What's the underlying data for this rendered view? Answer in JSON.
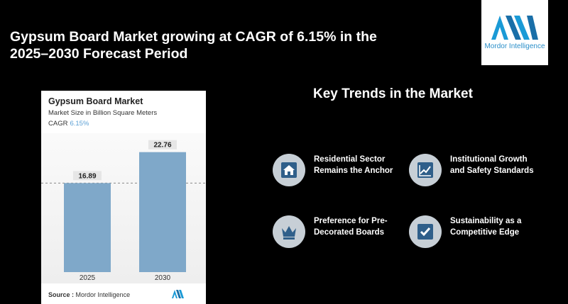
{
  "headline": "Gypsum Board Market growing at CAGR of 6.15% in the 2025–2030 Forecast Period",
  "logo": {
    "text": "Mordor Intelligence"
  },
  "card": {
    "title": "Gypsum Board Market",
    "subtitle": "Market Size in Billion Square Meters",
    "cagr_label": "CAGR",
    "cagr_value": "6.15%",
    "source_label": "Source :",
    "source_value": "Mordor Intelligence"
  },
  "chart_data": {
    "type": "bar",
    "categories": [
      "2025",
      "2030"
    ],
    "values": [
      16.89,
      22.76
    ],
    "value_labels": [
      "16.89",
      "22.76"
    ],
    "title": "Gypsum Board Market",
    "ylabel": "Market Size in Billion Square Meters",
    "ylim": [
      0,
      25
    ],
    "grid": false,
    "reference_line": "dashed line at 2025 value",
    "bar_color": "#7fa8c9"
  },
  "trends": {
    "title": "Key Trends in the Market",
    "items": [
      {
        "label": "Residential Sector Remains the Anchor",
        "icon": "house-icon"
      },
      {
        "label": "Institutional Growth and Safety Standards",
        "icon": "growth-chart-icon"
      },
      {
        "label": "Preference for Pre-Decorated Boards",
        "icon": "crown-icon"
      },
      {
        "label": "Sustainability as a Competitive Edge",
        "icon": "checkmark-icon"
      }
    ]
  },
  "colors": {
    "background": "#000000",
    "accent": "#5a9fd4",
    "icon_circle": "#c7cfd6",
    "icon_fill": "#2f5f8a"
  }
}
